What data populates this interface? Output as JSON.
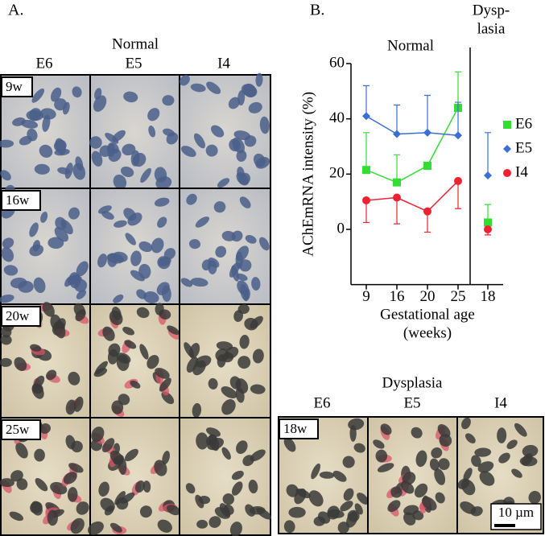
{
  "figure": {
    "panel_a": "A.",
    "panel_b": "B.",
    "normal_header": "Normal",
    "normal_columns": [
      "E6",
      "E5",
      "I4"
    ],
    "normal_rows": [
      "9w",
      "16w",
      "20w",
      "25w"
    ],
    "dysplasia_header": "Dysplasia",
    "dysplasia_columns": [
      "E6",
      "E5",
      "I4"
    ],
    "dysplasia_row": "18w",
    "scale_bar": "10 µm"
  },
  "chart_data": [
    {
      "type": "line",
      "title": "Normal",
      "ylabel": "AChEmRNA intensity (%)",
      "xlabel": [
        "Gestational age",
        "(weeks)"
      ],
      "categories": [
        "9",
        "16",
        "20",
        "25"
      ],
      "ylim": [
        -20,
        60
      ],
      "yticks": [
        0,
        20,
        40,
        60
      ],
      "series": [
        {
          "name": "E6",
          "color": "#33dd33",
          "marker": "square",
          "values": [
            21.5,
            17,
            23,
            44
          ],
          "errors": [
            13.5,
            10,
            0,
            13
          ]
        },
        {
          "name": "E5",
          "color": "#3a6fd8",
          "marker": "diamond",
          "values": [
            41,
            34.5,
            35,
            34
          ],
          "errors": [
            11,
            10.5,
            13.5,
            12
          ]
        },
        {
          "name": "I4",
          "color": "#ee2233",
          "marker": "circle",
          "values": [
            10.5,
            11.5,
            6.5,
            17.5
          ],
          "errors": [
            8,
            9.5,
            7.5,
            10
          ]
        }
      ]
    },
    {
      "type": "line",
      "title": [
        "Dysp-",
        "lasia"
      ],
      "categories": [
        "18"
      ],
      "series": [
        {
          "name": "E6",
          "color": "#33dd33",
          "marker": "square",
          "values": [
            2.5
          ],
          "errors": [
            6.5
          ]
        },
        {
          "name": "E5",
          "color": "#3a6fd8",
          "marker": "diamond",
          "values": [
            19.5
          ],
          "errors": [
            15.5
          ]
        },
        {
          "name": "I4",
          "color": "#ee2233",
          "marker": "circle",
          "values": [
            0
          ],
          "errors": [
            2
          ]
        }
      ]
    }
  ]
}
